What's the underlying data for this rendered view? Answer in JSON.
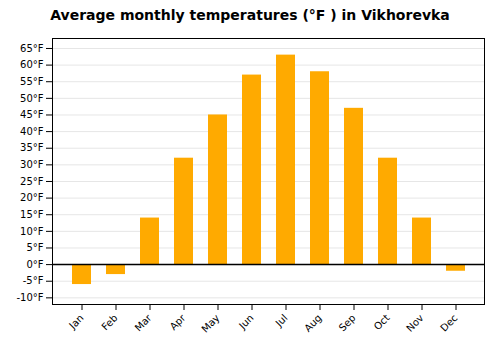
{
  "chart_data": {
    "type": "bar",
    "title": "Average monthly temperatures (°F ) in Vikhorevka",
    "categories": [
      "Jan",
      "Feb",
      "Mar",
      "Apr",
      "May",
      "Jun",
      "Jul",
      "Aug",
      "Sep",
      "Oct",
      "Nov",
      "Dec"
    ],
    "values": [
      -6,
      -3,
      14,
      32,
      45,
      57,
      63,
      58,
      47,
      32,
      14,
      -2
    ],
    "color": "#FFAA00",
    "ylim": [
      -12,
      68
    ],
    "yticks": [
      {
        "value": -10,
        "label": "-10°F"
      },
      {
        "value": -5,
        "label": "-5°F"
      },
      {
        "value": 0,
        "label": "0°F"
      },
      {
        "value": 5,
        "label": "5°F"
      },
      {
        "value": 10,
        "label": "10°F"
      },
      {
        "value": 15,
        "label": "15°F"
      },
      {
        "value": 20,
        "label": "20°F"
      },
      {
        "value": 25,
        "label": "25°F"
      },
      {
        "value": 30,
        "label": "30°F"
      },
      {
        "value": 35,
        "label": "35°F"
      },
      {
        "value": 40,
        "label": "40°F"
      },
      {
        "value": 45,
        "label": "45°F"
      },
      {
        "value": 50,
        "label": "50°F"
      },
      {
        "value": 55,
        "label": "55°F"
      },
      {
        "value": 60,
        "label": "60°F"
      },
      {
        "value": 65,
        "label": "65°F"
      }
    ],
    "grid": true
  }
}
